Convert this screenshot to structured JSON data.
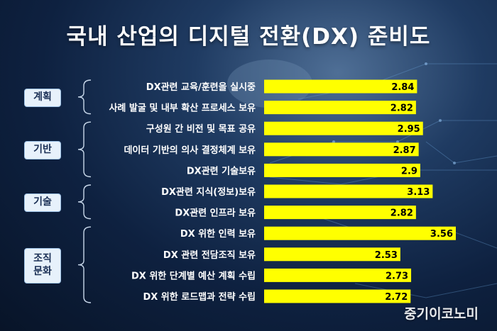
{
  "title": "국내 산업의 디지털 전환(DX) 준비도",
  "watermark": "중기이코노미",
  "colors": {
    "bar": "#ffff00",
    "bar_text": "#000000",
    "label_text": "#ffffff",
    "background": "#0e2140"
  },
  "groups": [
    {
      "label": "계획",
      "rows": [
        0,
        1
      ]
    },
    {
      "label": "기반",
      "rows": [
        2,
        3,
        4
      ]
    },
    {
      "label": "기술",
      "rows": [
        5,
        6
      ]
    },
    {
      "label": "조직\n문화",
      "rows": [
        7,
        8,
        9,
        10
      ]
    }
  ],
  "chart_data": {
    "type": "bar",
    "orientation": "horizontal",
    "categories": [
      "DX관련 교육/훈련을 실시중",
      "사례 발굴 및 내부 확산 프로세스 보유",
      "구성원 간 비전 및 목표 공유",
      "데이터 기반의 의사 결정체계 보유",
      "DX관련 기술보유",
      "DX관련 지식(정보)보유",
      "DX관련 인프라 보유",
      "DX 위한 인력 보유",
      "DX 관련 전담조직 보유",
      "DX 위한 단계별 예산 계획 수립",
      "DX 위한 로드맵과 전략 수립"
    ],
    "values": [
      2.84,
      2.82,
      2.95,
      2.87,
      2.9,
      3.13,
      2.82,
      3.56,
      2.53,
      2.73,
      2.72
    ],
    "xlim": [
      0,
      4
    ],
    "grid": false
  }
}
